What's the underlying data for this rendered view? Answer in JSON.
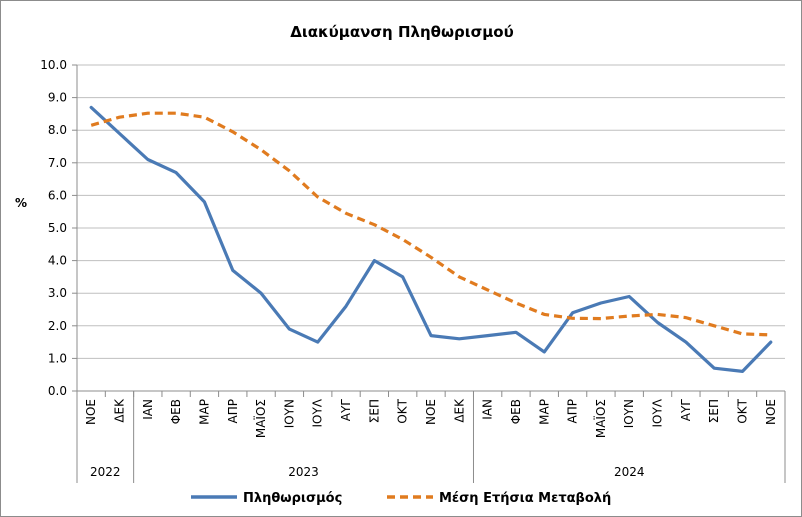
{
  "chart_data": {
    "type": "line",
    "title": "Διακύμανση Πληθωρισμού",
    "ylabel": "%",
    "ylim": [
      0,
      10
    ],
    "ytick_step": 1,
    "ytick_labels": [
      "0.0",
      "1.0",
      "2.0",
      "3.0",
      "4.0",
      "5.0",
      "6.0",
      "7.0",
      "8.0",
      "9.0",
      "10.0"
    ],
    "grid": true,
    "legend_position": "bottom",
    "categories": [
      "ΝΟΕ",
      "ΔΕΚ",
      "ΙΑΝ",
      "ΦΕΒ",
      "ΜΑΡ",
      "ΑΠΡ",
      "ΜΑΪΟΣ",
      "ΙΟΥΝ",
      "ΙΟΥΛ",
      "ΑΥΓ",
      "ΣΕΠ",
      "ΟΚΤ",
      "ΝΟΕ",
      "ΔΕΚ",
      "ΙΑΝ",
      "ΦΕΒ",
      "ΜΑΡ",
      "ΑΠΡ",
      "ΜΑΪΟΣ",
      "ΙΟΥΝ",
      "ΙΟΥΛ",
      "ΑΥΓ",
      "ΣΕΠ",
      "ΟΚΤ",
      "ΝΟΕ"
    ],
    "year_groups": [
      {
        "label": "2022",
        "start": 0,
        "end": 1
      },
      {
        "label": "2023",
        "start": 2,
        "end": 13
      },
      {
        "label": "2024",
        "start": 14,
        "end": 24
      }
    ],
    "series": [
      {
        "name": "Πληθωρισμός",
        "color": "#4a7ab5",
        "style": "solid",
        "values": [
          8.7,
          7.9,
          7.1,
          6.7,
          5.8,
          3.7,
          3.0,
          1.9,
          1.5,
          2.6,
          4.0,
          3.5,
          1.7,
          1.6,
          1.7,
          1.8,
          1.2,
          2.4,
          2.7,
          2.9,
          2.1,
          1.5,
          0.7,
          0.6,
          1.5
        ]
      },
      {
        "name": "Μέση Ετήσια Μεταβολή",
        "color": "#e07b1f",
        "style": "dashed",
        "values": [
          8.15,
          8.4,
          8.52,
          8.52,
          8.4,
          7.95,
          7.4,
          6.75,
          5.95,
          5.45,
          5.1,
          4.65,
          4.1,
          3.5,
          3.1,
          2.7,
          2.35,
          2.23,
          2.22,
          2.3,
          2.35,
          2.25,
          2.0,
          1.75,
          1.72
        ]
      }
    ]
  }
}
